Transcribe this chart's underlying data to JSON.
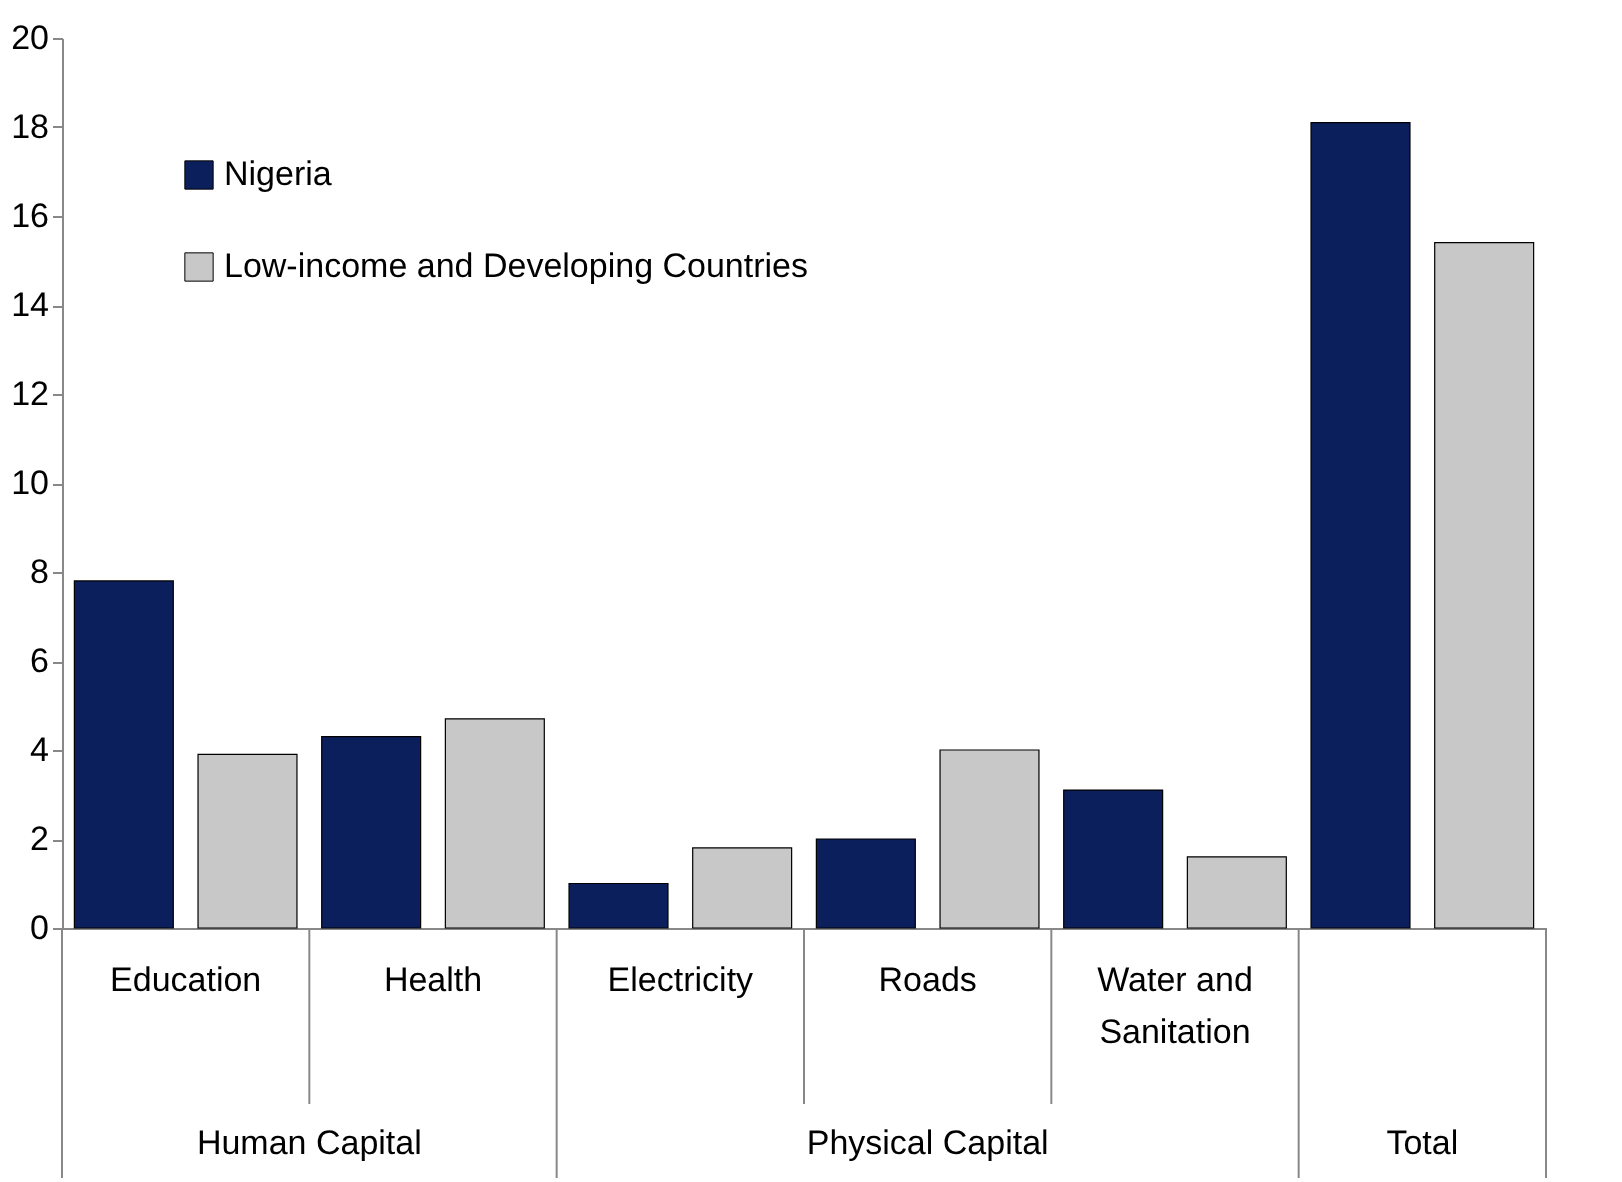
{
  "chart_data": {
    "type": "bar",
    "categories": [
      "Education",
      "Health",
      "Electricity",
      "Roads",
      "Water and Sanitation",
      null
    ],
    "series": [
      {
        "name": "Nigeria",
        "color": "#0b1f5c",
        "values": [
          7.8,
          4.3,
          1.0,
          2.0,
          3.1,
          18.1
        ]
      },
      {
        "name": "Low-income and Developing Countries",
        "color": "#c8c8c8",
        "values": [
          3.9,
          4.7,
          1.8,
          4.0,
          1.6,
          15.4
        ]
      }
    ],
    "annotations": [
      "Human Capital",
      "Physical Capital",
      "Total"
    ],
    "ylim": [
      0,
      20
    ],
    "yticks": [
      0,
      2,
      4,
      6,
      8,
      10,
      12,
      14,
      16,
      18,
      20
    ],
    "grid": false,
    "legend": "top left"
  }
}
